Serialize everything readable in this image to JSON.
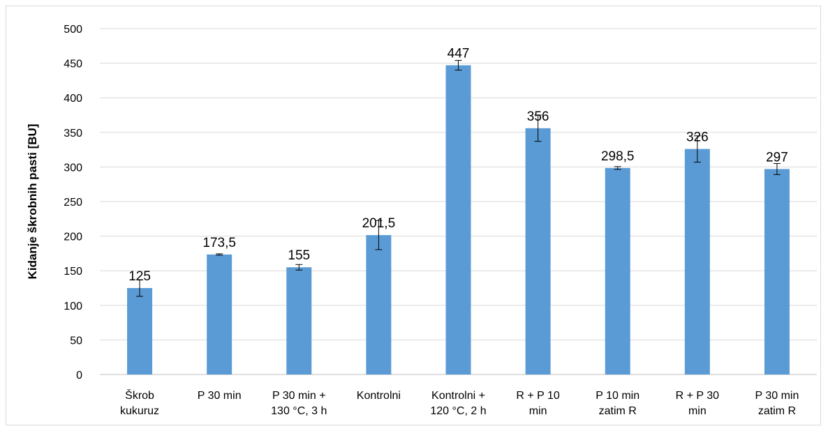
{
  "chart_data": {
    "type": "bar",
    "title": "",
    "xlabel": "",
    "ylabel": "Kidanje škrobnih pasti [BU]",
    "ylim": [
      0,
      500
    ],
    "yticks": [
      0,
      50,
      100,
      150,
      200,
      250,
      300,
      350,
      400,
      450,
      500
    ],
    "grid": true,
    "legend": "none",
    "bar_color": "#5b9bd5",
    "categories": [
      [
        "Škrob",
        "kukuruz"
      ],
      [
        "P 30 min"
      ],
      [
        "P 30 min +",
        "130 °C, 3 h"
      ],
      [
        "Kontrolni"
      ],
      [
        "Kontrolni +",
        "120 °C, 2 h"
      ],
      [
        "R + P 10",
        "min"
      ],
      [
        "P 10 min",
        "zatim R"
      ],
      [
        "R + P 30",
        "min"
      ],
      [
        "P 30 min",
        "zatim R"
      ]
    ],
    "values": [
      125,
      173.5,
      155,
      201.5,
      447,
      356,
      298.5,
      326,
      297
    ],
    "data_labels": [
      "125",
      "173,5",
      "155",
      "201,5",
      "447",
      "356",
      "298,5",
      "326",
      "297"
    ],
    "error": [
      12,
      1,
      4,
      21,
      7,
      19,
      2,
      19,
      8
    ]
  }
}
